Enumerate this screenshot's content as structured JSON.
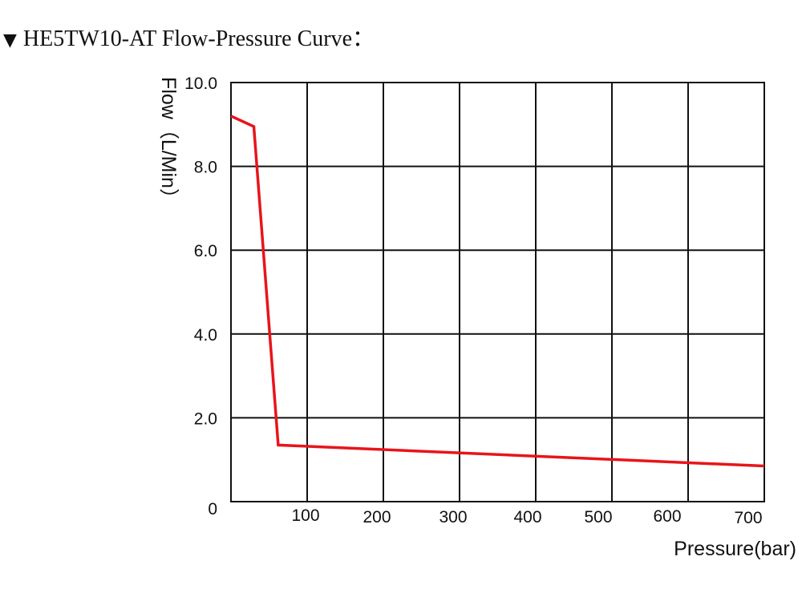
{
  "title": "HE5TW10-AT Flow-Pressure Curve：",
  "title_marker": "▼",
  "chart_data": {
    "type": "line",
    "xlabel": "Pressure(bar)",
    "ylabel": "Flow（L/Min）",
    "xlim": [
      0,
      700
    ],
    "ylim": [
      0,
      10
    ],
    "x_ticks": [
      "100",
      "200",
      "300",
      "400",
      "500",
      "600",
      "700"
    ],
    "y_ticks": [
      "0",
      "2.0",
      "4.0",
      "6.0",
      "8.0",
      "10.0"
    ],
    "grid": true,
    "series": [
      {
        "color": "#e8141b",
        "x": [
          0,
          30,
          62,
          700
        ],
        "y": [
          9.2,
          8.95,
          1.35,
          0.85
        ]
      }
    ]
  }
}
